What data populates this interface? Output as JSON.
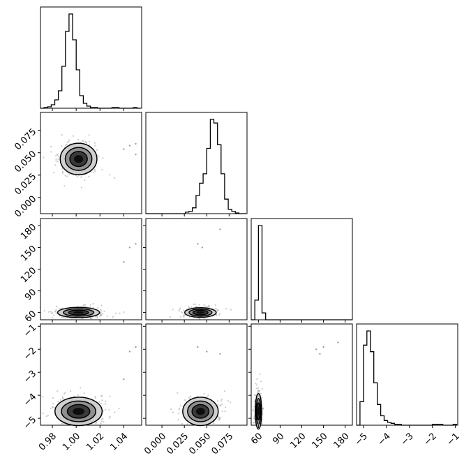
{
  "chart_data": {
    "type": "corner",
    "parameters": 4,
    "axes": [
      {
        "range": [
          0.97,
          1.055
        ],
        "ticks": [
          0.98,
          1.0,
          1.02,
          1.04
        ],
        "tick_labels": [
          "0.98",
          "1.00",
          "1.02",
          "1.04"
        ]
      },
      {
        "range": [
          -0.018,
          0.095
        ],
        "ticks": [
          0.0,
          0.025,
          0.05,
          0.075
        ],
        "tick_labels": [
          "0.000",
          "0.025",
          "0.050",
          "0.075"
        ]
      },
      {
        "range": [
          50,
          190
        ],
        "ticks": [
          60,
          90,
          120,
          150,
          180
        ],
        "tick_labels": [
          "60",
          "90",
          "120",
          "150",
          "180"
        ]
      },
      {
        "range": [
          -5.3,
          -0.9
        ],
        "ticks": [
          -5,
          -4,
          -3,
          -2,
          -1
        ],
        "tick_labels": [
          "−5",
          "−4",
          "−3",
          "−2",
          "−1"
        ]
      }
    ],
    "histograms": [
      {
        "edges": [
          0.97,
          0.973,
          0.976,
          0.979,
          0.982,
          0.985,
          0.988,
          0.991,
          0.994,
          0.997,
          1.0,
          1.003,
          1.006,
          1.009,
          1.012,
          1.015,
          1.018,
          1.021,
          1.024,
          1.027,
          1.03,
          1.033,
          1.036,
          1.039,
          1.042,
          1.045,
          1.048,
          1.051,
          1.054
        ],
        "counts": [
          0,
          1,
          2,
          5,
          12,
          25,
          60,
          110,
          135,
          98,
          55,
          18,
          7,
          3,
          1,
          1,
          0,
          0,
          0,
          0,
          1,
          1,
          0,
          0,
          0,
          0,
          1,
          0
        ]
      },
      {
        "edges": [
          -0.018,
          -0.014,
          -0.01,
          -0.006,
          -0.002,
          0.002,
          0.006,
          0.01,
          0.014,
          0.018,
          0.022,
          0.026,
          0.03,
          0.034,
          0.038,
          0.042,
          0.046,
          0.05,
          0.054,
          0.058,
          0.062,
          0.066,
          0.07,
          0.074,
          0.078,
          0.082,
          0.086,
          0.09,
          0.094
        ],
        "counts": [
          0,
          0,
          0,
          0,
          0,
          0,
          0,
          0,
          0,
          0,
          0,
          2,
          3,
          8,
          25,
          42,
          55,
          90,
          130,
          125,
          95,
          55,
          20,
          6,
          3,
          1,
          0,
          0
        ]
      },
      {
        "edges": [
          50,
          55,
          60,
          65,
          70,
          75,
          80,
          85,
          90,
          95,
          100,
          105,
          110,
          115,
          120,
          125,
          130,
          135,
          140,
          145,
          150,
          155,
          160,
          165,
          170,
          175,
          180,
          185,
          190
        ],
        "counts": [
          0,
          20,
          96,
          7,
          0,
          0,
          0,
          0,
          0,
          0,
          0,
          0,
          0,
          0,
          0,
          0,
          0,
          0,
          0,
          0,
          0,
          0,
          0,
          0,
          0,
          0,
          0,
          0
        ]
      },
      {
        "edges": [
          -5.3,
          -5.15,
          -5.0,
          -4.85,
          -4.7,
          -4.55,
          -4.4,
          -4.25,
          -4.1,
          -3.95,
          -3.8,
          -3.65,
          -3.5,
          -3.35,
          -3.2,
          -3.05,
          -2.9,
          -2.75,
          -2.6,
          -2.45,
          -2.3,
          -2.15,
          -2.0,
          -1.85,
          -1.7,
          -1.55,
          -1.4,
          -1.25,
          -1.1,
          -0.95
        ],
        "counts": [
          0,
          25,
          85,
          100,
          78,
          45,
          22,
          10,
          5,
          3,
          2,
          1,
          1,
          0,
          0,
          0,
          0,
          0,
          0,
          0,
          0,
          0,
          1,
          1,
          1,
          0,
          0,
          0,
          1
        ]
      }
    ],
    "contour_centers": [
      {
        "row": 1,
        "col": 0,
        "center": [
          1.002,
          0.043
        ],
        "spread": [
          0.007,
          0.008
        ]
      },
      {
        "row": 2,
        "col": 0,
        "center": [
          1.002,
          60
        ],
        "spread": [
          0.008,
          3.2
        ]
      },
      {
        "row": 2,
        "col": 1,
        "center": [
          0.043,
          60
        ],
        "spread": [
          0.008,
          3.0
        ]
      },
      {
        "row": 3,
        "col": 0,
        "center": [
          1.002,
          -4.7
        ],
        "spread": [
          0.009,
          0.28
        ]
      },
      {
        "row": 3,
        "col": 1,
        "center": [
          0.043,
          -4.7
        ],
        "spread": [
          0.009,
          0.28
        ]
      },
      {
        "row": 3,
        "col": 2,
        "center": [
          60,
          -4.7
        ],
        "spread": [
          2.0,
          0.35
        ]
      }
    ],
    "outliers": [
      {
        "row": 1,
        "col": 0,
        "points": [
          [
            1.04,
            0.054
          ],
          [
            1.045,
            0.058
          ],
          [
            1.05,
            0.06
          ],
          [
            1.05,
            0.048
          ]
        ]
      },
      {
        "row": 2,
        "col": 0,
        "points": [
          [
            1.04,
            130
          ],
          [
            1.045,
            150
          ],
          [
            1.05,
            155
          ]
        ]
      },
      {
        "row": 2,
        "col": 1,
        "points": [
          [
            0.04,
            155
          ],
          [
            0.045,
            150
          ],
          [
            0.065,
            175
          ]
        ]
      },
      {
        "row": 3,
        "col": 0,
        "points": [
          [
            1.045,
            -2.1
          ],
          [
            1.05,
            -1.9
          ],
          [
            1.04,
            -3.3
          ]
        ]
      },
      {
        "row": 3,
        "col": 1,
        "points": [
          [
            0.04,
            -1.9
          ],
          [
            0.05,
            -2.1
          ],
          [
            0.065,
            -2.2
          ]
        ]
      },
      {
        "row": 3,
        "col": 2,
        "points": [
          [
            140,
            -2.0
          ],
          [
            150,
            -1.9
          ],
          [
            170,
            -1.7
          ],
          [
            145,
            -2.2
          ]
        ]
      }
    ],
    "colors": {
      "line": "#000000",
      "scatter": "#9e9e9e",
      "fill_light": "#d0d0d0",
      "fill_mid": "#8f8f8f",
      "fill_dark": "#3a3a3a",
      "fill_core": "#0d0d0d"
    }
  }
}
